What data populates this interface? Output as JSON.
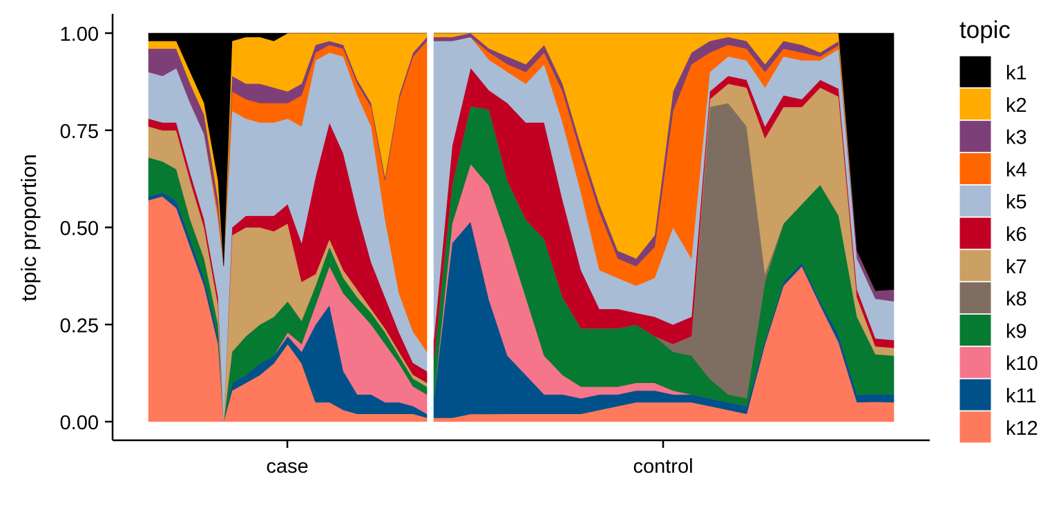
{
  "chart_data": {
    "type": "area",
    "title": "",
    "xlabel": "",
    "ylabel": "topic proportion",
    "ylim": [
      0,
      1
    ],
    "yticks": [
      "0.00",
      "0.25",
      "0.50",
      "0.75",
      "1.00"
    ],
    "yticks_values": [
      0,
      0.25,
      0.5,
      0.75,
      1.0
    ],
    "facets": [
      "case",
      "control"
    ],
    "legend": {
      "title": "topic",
      "position": "right"
    },
    "series": [
      {
        "name": "k1",
        "color": "#000000"
      },
      {
        "name": "k2",
        "color": "#FFAB00"
      },
      {
        "name": "k3",
        "color": "#7E3F78"
      },
      {
        "name": "k4",
        "color": "#FF6600"
      },
      {
        "name": "k5",
        "color": "#A8BCD6"
      },
      {
        "name": "k6",
        "color": "#C20023"
      },
      {
        "name": "k7",
        "color": "#CC9F62"
      },
      {
        "name": "k8",
        "color": "#7E6E61"
      },
      {
        "name": "k9",
        "color": "#077A32"
      },
      {
        "name": "k10",
        "color": "#F5758A"
      },
      {
        "name": "k11",
        "color": "#00518A"
      },
      {
        "name": "k12",
        "color": "#FF7A5C"
      }
    ],
    "panels": [
      {
        "facet": "case",
        "x": [
          0,
          0.05,
          0.1,
          0.15,
          0.2,
          0.25,
          0.27,
          0.3,
          0.35,
          0.4,
          0.45,
          0.5,
          0.55,
          0.6,
          0.65,
          0.7,
          0.75,
          0.8,
          0.85,
          0.9,
          0.95,
          1.0
        ],
        "stack": {
          "k12": [
            0.57,
            0.58,
            0.55,
            0.45,
            0.35,
            0.2,
            0.0,
            0.08,
            0.1,
            0.12,
            0.15,
            0.2,
            0.15,
            0.05,
            0.05,
            0.03,
            0.02,
            0.02,
            0.02,
            0.02,
            0.02,
            0.01
          ],
          "k11": [
            0.01,
            0.01,
            0.02,
            0.02,
            0.02,
            0.02,
            0.0,
            0.02,
            0.02,
            0.03,
            0.02,
            0.02,
            0.03,
            0.2,
            0.25,
            0.1,
            0.05,
            0.05,
            0.03,
            0.03,
            0.02,
            0.01
          ],
          "k10": [
            0.0,
            0.0,
            0.0,
            0.0,
            0.0,
            0.0,
            0.0,
            0.0,
            0.0,
            0.0,
            0.0,
            0.01,
            0.02,
            0.05,
            0.1,
            0.2,
            0.22,
            0.18,
            0.15,
            0.1,
            0.05,
            0.05
          ],
          "k9": [
            0.1,
            0.08,
            0.08,
            0.05,
            0.05,
            0.03,
            0.0,
            0.08,
            0.1,
            0.1,
            0.1,
            0.08,
            0.06,
            0.05,
            0.05,
            0.04,
            0.03,
            0.03,
            0.03,
            0.02,
            0.02,
            0.02
          ],
          "k8": [
            0.0,
            0.0,
            0.0,
            0.0,
            0.0,
            0.0,
            0.0,
            0.0,
            0.0,
            0.0,
            0.0,
            0.0,
            0.0,
            0.0,
            0.0,
            0.0,
            0.0,
            0.0,
            0.0,
            0.0,
            0.0,
            0.0
          ],
          "k7": [
            0.08,
            0.08,
            0.1,
            0.1,
            0.08,
            0.05,
            0.0,
            0.3,
            0.28,
            0.25,
            0.22,
            0.2,
            0.1,
            0.03,
            0.02,
            0.02,
            0.02,
            0.01,
            0.01,
            0.01,
            0.01,
            0.01
          ],
          "k6": [
            0.02,
            0.02,
            0.02,
            0.02,
            0.02,
            0.02,
            0.0,
            0.02,
            0.03,
            0.03,
            0.04,
            0.05,
            0.1,
            0.25,
            0.3,
            0.3,
            0.2,
            0.12,
            0.08,
            0.05,
            0.03,
            0.03
          ],
          "k5": [
            0.12,
            0.12,
            0.14,
            0.18,
            0.22,
            0.2,
            0.4,
            0.3,
            0.25,
            0.24,
            0.24,
            0.22,
            0.3,
            0.3,
            0.18,
            0.25,
            0.3,
            0.35,
            0.2,
            0.1,
            0.08,
            0.05
          ],
          "k4": [
            0.0,
            0.0,
            0.0,
            0.0,
            0.0,
            0.02,
            0.0,
            0.05,
            0.05,
            0.05,
            0.05,
            0.04,
            0.08,
            0.02,
            0.02,
            0.02,
            0.03,
            0.05,
            0.1,
            0.5,
            0.7,
            0.8
          ],
          "k3": [
            0.06,
            0.07,
            0.05,
            0.05,
            0.05,
            0.03,
            0.0,
            0.04,
            0.04,
            0.05,
            0.04,
            0.03,
            0.03,
            0.02,
            0.01,
            0.01,
            0.01,
            0.01,
            0.01,
            0.01,
            0.01,
            0.01
          ],
          "k2": [
            0.02,
            0.02,
            0.02,
            0.03,
            0.03,
            0.05,
            0.0,
            0.09,
            0.12,
            0.12,
            0.12,
            0.15,
            0.13,
            0.03,
            0.02,
            0.03,
            0.12,
            0.18,
            0.37,
            0.16,
            0.05,
            0.01
          ],
          "k1": [
            0.02,
            0.02,
            0.02,
            0.1,
            0.18,
            0.38,
            0.6,
            0.02,
            0.01,
            0.01,
            0.02,
            0.0,
            0.0,
            0.0,
            0.0,
            0.0,
            0.0,
            0.0,
            0.0,
            0.0,
            0.0,
            0.0
          ]
        }
      },
      {
        "facet": "control",
        "x": [
          0,
          0.04,
          0.08,
          0.12,
          0.16,
          0.2,
          0.24,
          0.28,
          0.32,
          0.36,
          0.4,
          0.44,
          0.48,
          0.52,
          0.56,
          0.6,
          0.64,
          0.68,
          0.72,
          0.76,
          0.8,
          0.84,
          0.88,
          0.92,
          0.96,
          1.0
        ],
        "stack": {
          "k12": [
            0.01,
            0.01,
            0.02,
            0.02,
            0.02,
            0.02,
            0.02,
            0.02,
            0.02,
            0.03,
            0.04,
            0.05,
            0.05,
            0.05,
            0.05,
            0.04,
            0.03,
            0.02,
            0.2,
            0.35,
            0.4,
            0.3,
            0.2,
            0.05,
            0.05,
            0.05
          ],
          "k11": [
            0.05,
            0.45,
            0.5,
            0.3,
            0.15,
            0.1,
            0.05,
            0.05,
            0.04,
            0.04,
            0.03,
            0.03,
            0.03,
            0.02,
            0.02,
            0.02,
            0.02,
            0.02,
            0.01,
            0.01,
            0.01,
            0.01,
            0.02,
            0.02,
            0.02,
            0.02
          ],
          "k10": [
            0.0,
            0.05,
            0.15,
            0.3,
            0.3,
            0.2,
            0.1,
            0.05,
            0.03,
            0.02,
            0.02,
            0.02,
            0.02,
            0.01,
            0.0,
            0.0,
            0.0,
            0.0,
            0.0,
            0.0,
            0.0,
            0.0,
            0.0,
            0.0,
            0.0,
            0.0
          ],
          "k9": [
            0.1,
            0.1,
            0.15,
            0.2,
            0.15,
            0.2,
            0.3,
            0.2,
            0.15,
            0.15,
            0.15,
            0.15,
            0.12,
            0.1,
            0.1,
            0.05,
            0.02,
            0.02,
            0.15,
            0.15,
            0.15,
            0.3,
            0.3,
            0.2,
            0.1,
            0.1
          ],
          "k8": [
            0.0,
            0.0,
            0.0,
            0.0,
            0.0,
            0.0,
            0.0,
            0.0,
            0.0,
            0.0,
            0.0,
            0.0,
            0.0,
            0.02,
            0.05,
            0.7,
            0.75,
            0.7,
            0.02,
            0.0,
            0.0,
            0.0,
            0.0,
            0.0,
            0.0,
            0.0
          ],
          "k7": [
            0.0,
            0.0,
            0.0,
            0.0,
            0.0,
            0.0,
            0.0,
            0.0,
            0.0,
            0.0,
            0.0,
            0.0,
            0.0,
            0.0,
            0.0,
            0.02,
            0.05,
            0.1,
            0.35,
            0.3,
            0.25,
            0.25,
            0.3,
            0.05,
            0.02,
            0.02
          ],
          "k6": [
            0.05,
            0.1,
            0.1,
            0.05,
            0.2,
            0.25,
            0.3,
            0.25,
            0.15,
            0.05,
            0.05,
            0.03,
            0.05,
            0.05,
            0.05,
            0.02,
            0.02,
            0.02,
            0.03,
            0.03,
            0.02,
            0.02,
            0.02,
            0.02,
            0.02,
            0.02
          ],
          "k5": [
            0.77,
            0.27,
            0.08,
            0.08,
            0.08,
            0.1,
            0.15,
            0.2,
            0.2,
            0.1,
            0.08,
            0.07,
            0.1,
            0.25,
            0.15,
            0.05,
            0.05,
            0.05,
            0.1,
            0.1,
            0.1,
            0.05,
            0.1,
            0.08,
            0.1,
            0.1
          ],
          "k4": [
            0.0,
            0.0,
            0.0,
            0.02,
            0.02,
            0.03,
            0.03,
            0.08,
            0.1,
            0.15,
            0.05,
            0.05,
            0.08,
            0.3,
            0.5,
            0.05,
            0.03,
            0.03,
            0.04,
            0.02,
            0.02,
            0.01,
            0.01,
            0.0,
            0.0,
            0.0
          ],
          "k3": [
            0.01,
            0.01,
            0.01,
            0.01,
            0.02,
            0.02,
            0.02,
            0.02,
            0.02,
            0.02,
            0.02,
            0.02,
            0.03,
            0.05,
            0.03,
            0.03,
            0.02,
            0.02,
            0.02,
            0.02,
            0.02,
            0.01,
            0.01,
            0.02,
            0.02,
            0.03
          ],
          "k2": [
            0.01,
            0.01,
            0.0,
            0.04,
            0.06,
            0.08,
            0.03,
            0.13,
            0.29,
            0.44,
            0.56,
            0.58,
            0.52,
            0.15,
            0.05,
            0.02,
            0.01,
            0.02,
            0.08,
            0.02,
            0.03,
            0.05,
            0.02,
            0.0,
            0.0,
            0.0
          ],
          "k1": [
            0.0,
            0.0,
            0.0,
            0.0,
            0.0,
            0.0,
            0.0,
            0.0,
            0.0,
            0.0,
            0.0,
            0.0,
            0.0,
            0.0,
            0.0,
            0.0,
            0.0,
            0.0,
            0.0,
            0.0,
            0.0,
            0.0,
            0.0,
            0.56,
            0.65,
            0.66
          ]
        }
      }
    ]
  }
}
